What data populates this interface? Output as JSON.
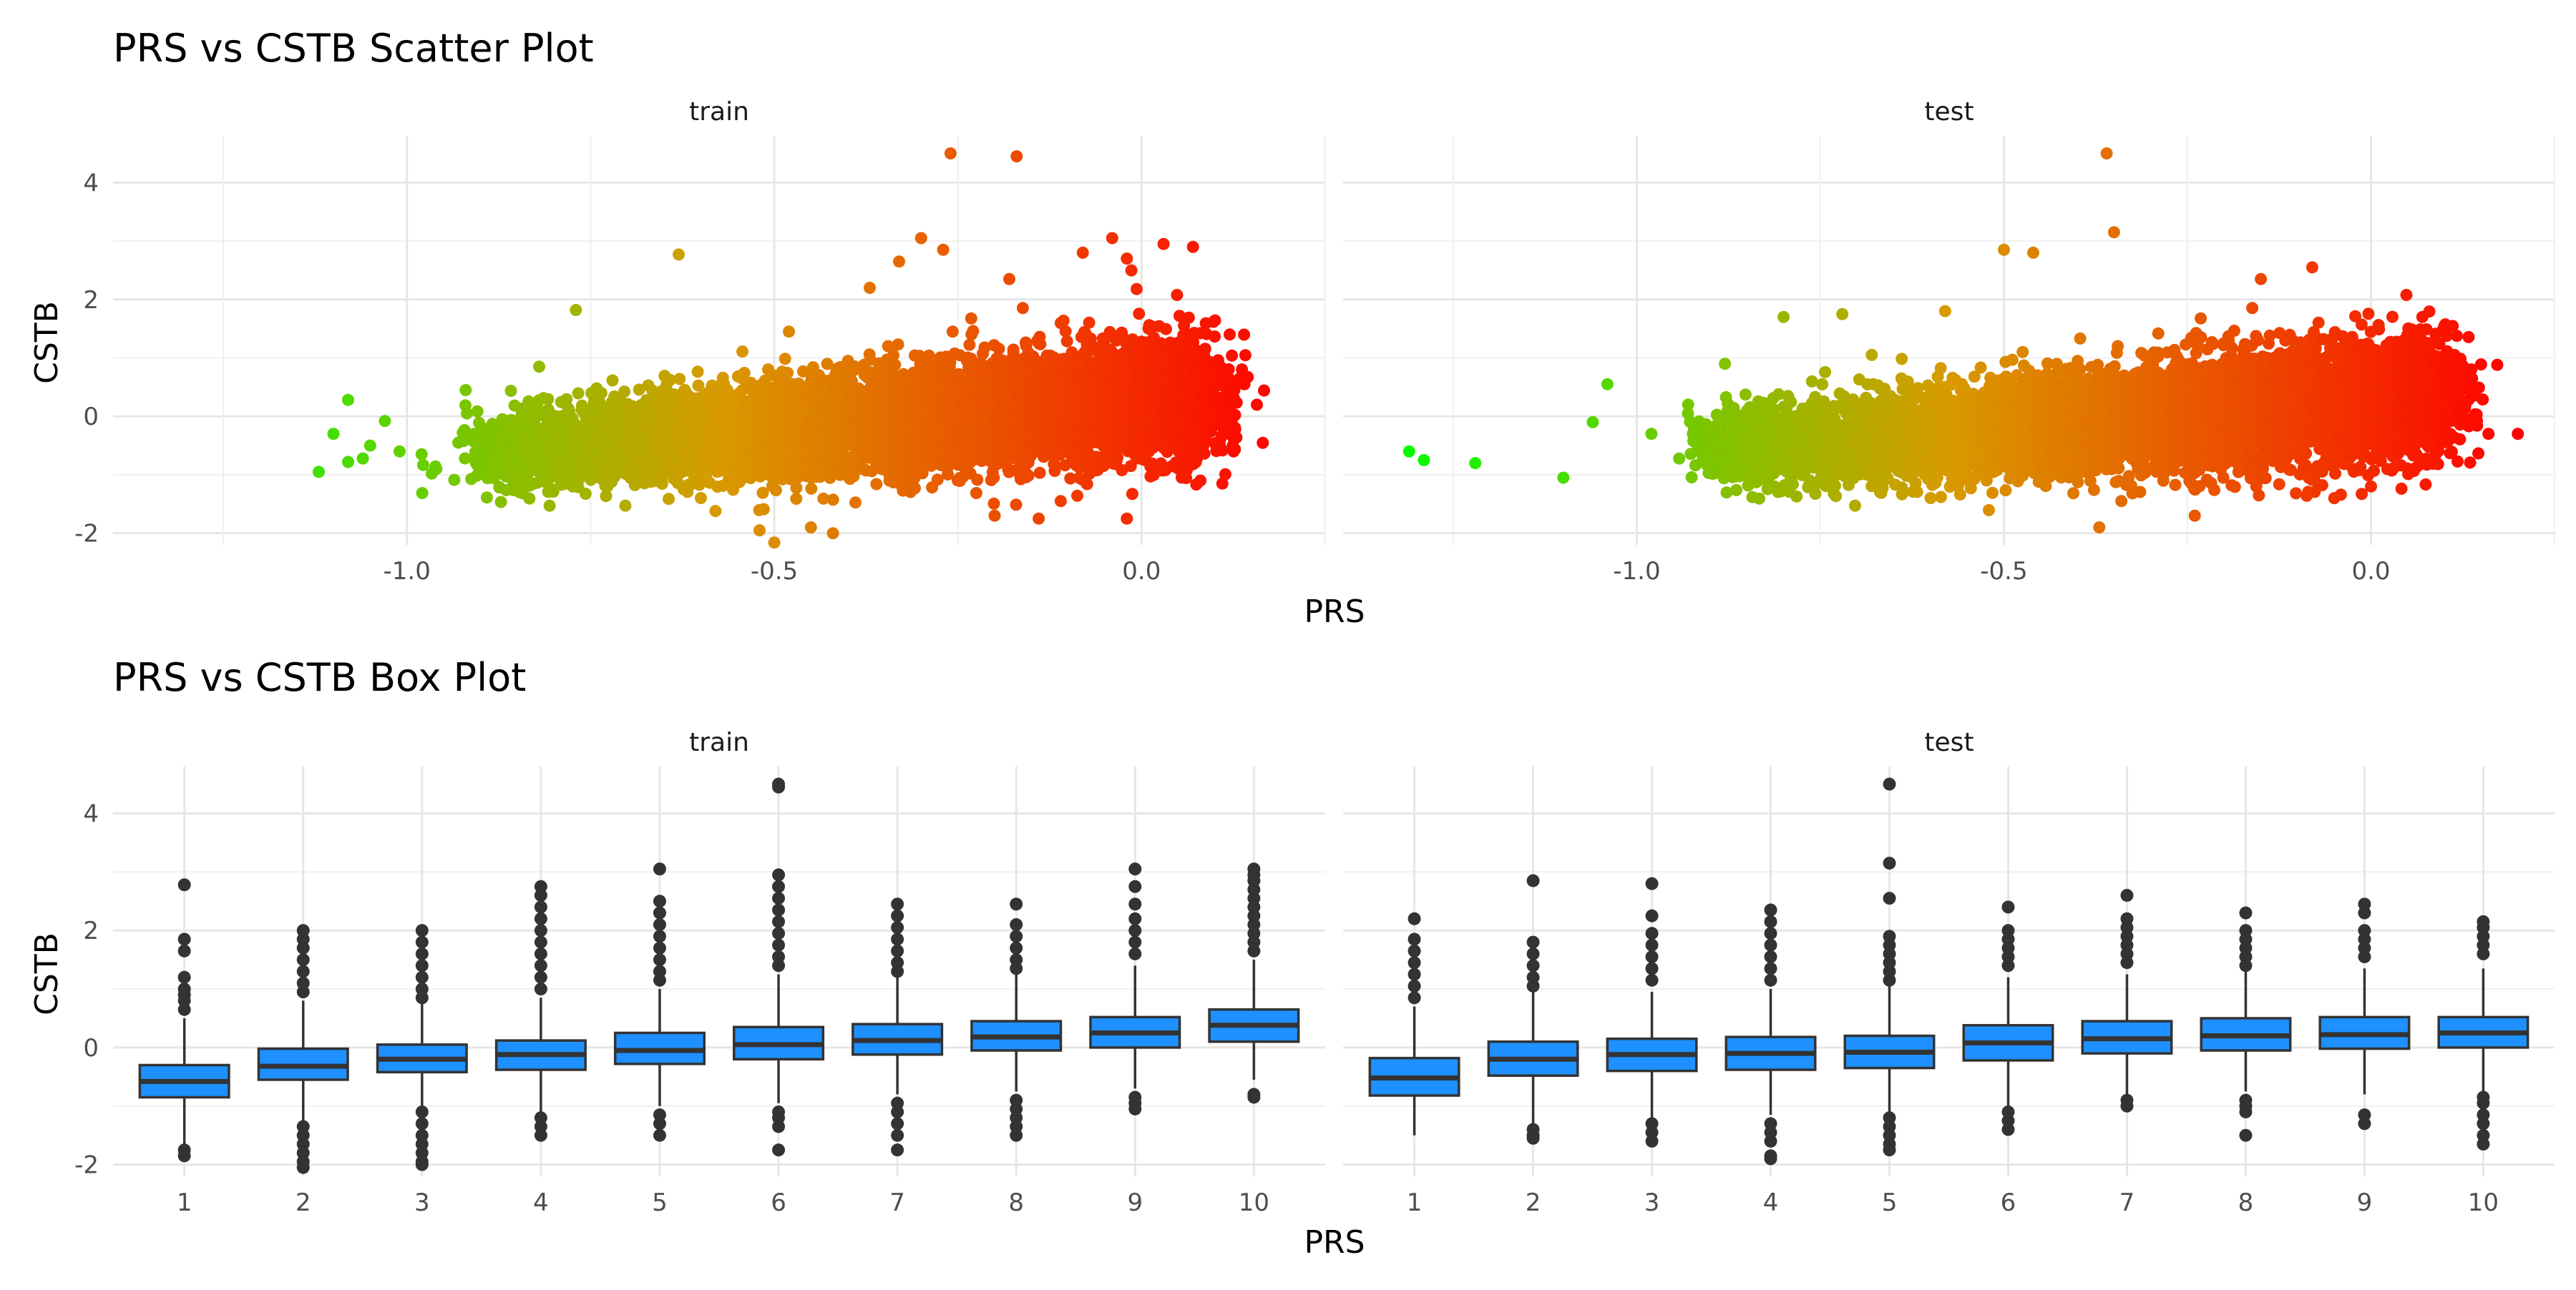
{
  "figure": {
    "scatter_title": "PRS vs CSTB Scatter Plot",
    "box_title": "PRS vs CSTB Box Plot",
    "x_label": "PRS",
    "y_label": "CSTB",
    "panel_train": "train",
    "panel_test": "test"
  },
  "chart_data": [
    {
      "type": "scatter",
      "title": "PRS vs CSTB Scatter Plot",
      "xlabel": "PRS",
      "ylabel": "CSTB",
      "facets": [
        "train",
        "test"
      ],
      "xlim": [
        -1.4,
        0.25
      ],
      "ylim": [
        -2.2,
        4.8
      ],
      "x_ticks": [
        -1.0,
        -0.5,
        0.0
      ],
      "x_tick_labels": [
        "-1.0",
        "-0.5",
        "0.0"
      ],
      "y_ticks": [
        -2,
        0,
        2,
        4
      ],
      "y_tick_labels": [
        "-2",
        "0",
        "2",
        "4"
      ],
      "color_gradient": {
        "by": "PRS",
        "low": "#00ff00",
        "mid": "#d89a00",
        "high": "#ff0000"
      },
      "grid": true,
      "legend": "none",
      "bulk_trend": {
        "x_range": [
          -0.9,
          0.1
        ],
        "y_center_at_x_min": -0.6,
        "y_center_at_x_max": 0.35,
        "y_spread_sd": 0.45
      },
      "series": [
        {
          "name": "train",
          "points": [
            [
              -1.12,
              -0.95
            ],
            [
              -1.08,
              0.28
            ],
            [
              -1.1,
              -0.3
            ],
            [
              -1.08,
              -0.78
            ],
            [
              -1.06,
              -0.72
            ],
            [
              -1.05,
              -0.5
            ],
            [
              -1.03,
              -0.08
            ],
            [
              -1.01,
              -0.6
            ],
            [
              -0.98,
              -0.65
            ],
            [
              -0.96,
              -0.9
            ],
            [
              -0.93,
              -0.45
            ],
            [
              -0.92,
              0.45
            ],
            [
              -0.87,
              -0.05
            ],
            [
              -0.82,
              0.85
            ],
            [
              -0.77,
              1.82
            ],
            [
              -0.63,
              2.77
            ],
            [
              -0.58,
              -1.62
            ],
            [
              -0.52,
              -1.95
            ],
            [
              -0.48,
              1.45
            ],
            [
              -0.45,
              -1.9
            ],
            [
              -0.42,
              -2.0
            ],
            [
              -0.37,
              2.2
            ],
            [
              -0.33,
              2.65
            ],
            [
              -0.3,
              3.05
            ],
            [
              -0.27,
              2.85
            ],
            [
              -0.26,
              4.5
            ],
            [
              -0.2,
              -1.7
            ],
            [
              -0.18,
              2.35
            ],
            [
              -0.17,
              4.45
            ],
            [
              -0.14,
              -1.75
            ],
            [
              -0.11,
              -1.45
            ],
            [
              -0.08,
              2.8
            ],
            [
              -0.04,
              3.05
            ],
            [
              -0.02,
              2.7
            ],
            [
              0.03,
              2.95
            ],
            [
              0.07,
              2.9
            ],
            [
              0.11,
              -1.15
            ],
            [
              0.12,
              1.4
            ],
            [
              0.14,
              0.55
            ],
            [
              -0.02,
              -1.75
            ]
          ]
        },
        {
          "name": "test",
          "points": [
            [
              -1.31,
              -0.6
            ],
            [
              -1.29,
              -0.75
            ],
            [
              -1.22,
              -0.8
            ],
            [
              -1.1,
              -1.05
            ],
            [
              -1.06,
              -0.1
            ],
            [
              -1.04,
              0.55
            ],
            [
              -0.98,
              -0.3
            ],
            [
              -0.93,
              0.2
            ],
            [
              -0.88,
              0.9
            ],
            [
              -0.8,
              1.7
            ],
            [
              -0.72,
              1.75
            ],
            [
              -0.68,
              1.05
            ],
            [
              -0.58,
              1.8
            ],
            [
              -0.5,
              2.85
            ],
            [
              -0.46,
              2.8
            ],
            [
              -0.36,
              4.5
            ],
            [
              -0.35,
              3.15
            ],
            [
              -0.37,
              -1.9
            ],
            [
              -0.34,
              -1.45
            ],
            [
              -0.24,
              -1.7
            ],
            [
              -0.15,
              2.35
            ],
            [
              -0.08,
              2.55
            ],
            [
              -0.05,
              -1.4
            ],
            [
              0.0,
              -1.2
            ],
            [
              0.07,
              1.7
            ],
            [
              0.1,
              1.55
            ],
            [
              0.12,
              0.3
            ],
            [
              0.16,
              -0.3
            ],
            [
              0.2,
              -0.3
            ]
          ]
        }
      ]
    },
    {
      "type": "box",
      "title": "PRS vs CSTB Box Plot",
      "xlabel": "PRS",
      "ylabel": "CSTB",
      "facets": [
        "train",
        "test"
      ],
      "categories": [
        "1",
        "2",
        "3",
        "4",
        "5",
        "6",
        "7",
        "8",
        "9",
        "10"
      ],
      "ylim": [
        -2.2,
        4.8
      ],
      "y_ticks": [
        -2,
        0,
        2,
        4
      ],
      "y_tick_labels": [
        "-2",
        "0",
        "2",
        "4"
      ],
      "box_color": "#1e90ff",
      "grid": true,
      "series": [
        {
          "name": "train",
          "boxes": [
            {
              "q1": -0.85,
              "median": -0.58,
              "q3": -0.3,
              "low": -1.65,
              "high": 0.5,
              "outliers": [
                2.78,
                1.85,
                1.65,
                1.2,
                1.0,
                0.9,
                0.8,
                0.65,
                -1.75,
                -1.85
              ]
            },
            {
              "q1": -0.55,
              "median": -0.32,
              "q3": -0.02,
              "low": -1.25,
              "high": 0.8,
              "outliers": [
                2.0,
                1.85,
                1.7,
                1.5,
                1.3,
                1.1,
                0.95,
                -1.35,
                -1.5,
                -1.65,
                -1.8,
                -1.95,
                -2.05
              ]
            },
            {
              "q1": -0.42,
              "median": -0.2,
              "q3": 0.05,
              "low": -1.0,
              "high": 0.75,
              "outliers": [
                2.0,
                1.8,
                1.6,
                1.4,
                1.2,
                1.0,
                0.85,
                -1.1,
                -1.3,
                -1.5,
                -1.65,
                -1.8,
                -1.95,
                -2.0
              ]
            },
            {
              "q1": -0.38,
              "median": -0.12,
              "q3": 0.12,
              "low": -1.1,
              "high": 0.85,
              "outliers": [
                2.75,
                2.6,
                2.4,
                2.2,
                2.0,
                1.8,
                1.6,
                1.4,
                1.2,
                1.0,
                -1.2,
                -1.35,
                -1.5
              ]
            },
            {
              "q1": -0.28,
              "median": -0.05,
              "q3": 0.25,
              "low": -1.0,
              "high": 1.0,
              "outliers": [
                3.05,
                2.5,
                2.3,
                2.1,
                1.9,
                1.7,
                1.5,
                1.3,
                1.15,
                -1.15,
                -1.3,
                -1.5
              ]
            },
            {
              "q1": -0.2,
              "median": 0.05,
              "q3": 0.35,
              "low": -0.95,
              "high": 1.25,
              "outliers": [
                4.5,
                4.45,
                2.95,
                2.75,
                2.55,
                2.35,
                2.15,
                1.95,
                1.75,
                1.55,
                1.4,
                -1.1,
                -1.2,
                -1.35,
                -1.75
              ]
            },
            {
              "q1": -0.12,
              "median": 0.12,
              "q3": 0.4,
              "low": -0.8,
              "high": 1.2,
              "outliers": [
                2.45,
                2.25,
                2.05,
                1.85,
                1.65,
                1.45,
                1.3,
                -0.95,
                -1.1,
                -1.3,
                -1.5,
                -1.75
              ]
            },
            {
              "q1": -0.05,
              "median": 0.18,
              "q3": 0.45,
              "low": -0.75,
              "high": 1.25,
              "outliers": [
                2.45,
                2.1,
                1.9,
                1.7,
                1.5,
                1.35,
                -0.9,
                -1.05,
                -1.2,
                -1.35,
                -1.5
              ]
            },
            {
              "q1": 0.0,
              "median": 0.25,
              "q3": 0.52,
              "low": -0.7,
              "high": 1.4,
              "outliers": [
                3.05,
                2.75,
                2.45,
                2.2,
                2.0,
                1.8,
                1.6,
                -0.85,
                -0.95,
                -1.05
              ]
            },
            {
              "q1": 0.1,
              "median": 0.38,
              "q3": 0.65,
              "low": -0.55,
              "high": 1.5,
              "outliers": [
                3.05,
                2.95,
                2.85,
                2.7,
                2.55,
                2.4,
                2.25,
                2.1,
                1.95,
                1.8,
                1.65,
                -0.8,
                -0.85
              ]
            }
          ]
        },
        {
          "name": "test",
          "boxes": [
            {
              "q1": -0.82,
              "median": -0.52,
              "q3": -0.18,
              "low": -1.5,
              "high": 0.7,
              "outliers": [
                2.2,
                1.85,
                1.65,
                1.45,
                1.25,
                1.05,
                0.85
              ]
            },
            {
              "q1": -0.48,
              "median": -0.2,
              "q3": 0.1,
              "low": -1.3,
              "high": 0.95,
              "outliers": [
                2.85,
                1.8,
                1.6,
                1.4,
                1.2,
                1.05,
                -1.4,
                -1.5,
                -1.55
              ]
            },
            {
              "q1": -0.4,
              "median": -0.12,
              "q3": 0.15,
              "low": -1.2,
              "high": 0.95,
              "outliers": [
                2.8,
                2.25,
                1.95,
                1.75,
                1.55,
                1.35,
                1.15,
                -1.3,
                -1.45,
                -1.6
              ]
            },
            {
              "q1": -0.38,
              "median": -0.1,
              "q3": 0.18,
              "low": -1.15,
              "high": 1.0,
              "outliers": [
                2.35,
                2.15,
                1.95,
                1.75,
                1.55,
                1.35,
                1.15,
                -1.3,
                -1.45,
                -1.6,
                -1.85,
                -1.9
              ]
            },
            {
              "q1": -0.35,
              "median": -0.08,
              "q3": 0.2,
              "low": -1.1,
              "high": 1.05,
              "outliers": [
                4.5,
                3.15,
                2.55,
                1.9,
                1.75,
                1.6,
                1.45,
                1.3,
                1.15,
                -1.2,
                -1.35,
                -1.5,
                -1.65,
                -1.75
              ]
            },
            {
              "q1": -0.22,
              "median": 0.08,
              "q3": 0.38,
              "low": -1.0,
              "high": 1.2,
              "outliers": [
                2.4,
                2.0,
                1.85,
                1.7,
                1.55,
                1.4,
                -1.1,
                -1.25,
                -1.4
              ]
            },
            {
              "q1": -0.1,
              "median": 0.15,
              "q3": 0.45,
              "low": -0.8,
              "high": 1.25,
              "outliers": [
                2.6,
                2.2,
                2.05,
                1.9,
                1.75,
                1.6,
                1.45,
                -0.9,
                -1.0
              ]
            },
            {
              "q1": -0.05,
              "median": 0.2,
              "q3": 0.5,
              "low": -0.75,
              "high": 1.3,
              "outliers": [
                2.3,
                2.0,
                1.85,
                1.7,
                1.55,
                1.4,
                -0.9,
                -1.0,
                -1.1,
                -1.5
              ]
            },
            {
              "q1": -0.02,
              "median": 0.22,
              "q3": 0.52,
              "low": -0.8,
              "high": 1.35,
              "outliers": [
                2.45,
                2.3,
                2.0,
                1.85,
                1.7,
                1.55,
                -1.15,
                -1.3
              ]
            },
            {
              "q1": 0.0,
              "median": 0.25,
              "q3": 0.52,
              "low": -0.75,
              "high": 1.35,
              "outliers": [
                2.15,
                2.05,
                1.9,
                1.75,
                1.6,
                -0.85,
                -0.95,
                -1.15,
                -1.3,
                -1.5,
                -1.65
              ]
            }
          ]
        }
      ]
    }
  ]
}
